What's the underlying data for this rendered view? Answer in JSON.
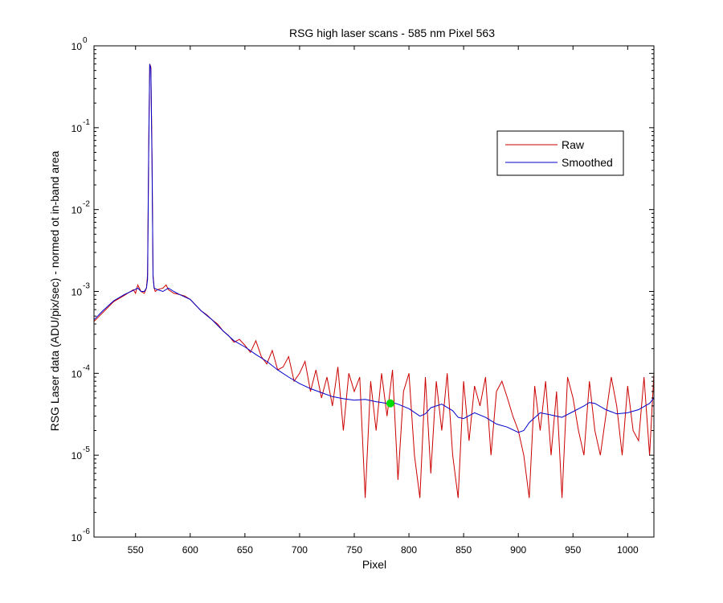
{
  "chart_data": {
    "type": "line",
    "title": "RSG high laser scans  - 585 nm    Pixel 563",
    "xlabel": "Pixel",
    "ylabel": "RSG Laser data (ADU/pix/sec) - normed ot in-band area",
    "xlim": [
      512,
      1024
    ],
    "ylim": [
      1e-06,
      1
    ],
    "yscale": "log",
    "grid": false,
    "legend_position": "top-right",
    "x_ticks": [
      "550",
      "600",
      "650",
      "700",
      "750",
      "800",
      "850",
      "900",
      "950",
      "1000"
    ],
    "y_ticks": [
      {
        "base": "10",
        "exp": "0"
      },
      {
        "base": "10",
        "exp": "-1"
      },
      {
        "base": "10",
        "exp": "-2"
      },
      {
        "base": "10",
        "exp": "-3"
      },
      {
        "base": "10",
        "exp": "-4"
      },
      {
        "base": "10",
        "exp": "-5"
      },
      {
        "base": "10",
        "exp": "-6"
      }
    ],
    "series": [
      {
        "name": "Raw",
        "color": "#cc0000",
        "x": [
          512,
          520,
          530,
          540,
          548,
          550,
          552,
          555,
          558,
          560,
          561,
          562,
          563,
          564,
          565,
          566,
          567,
          568,
          570,
          575,
          578,
          580,
          585,
          590,
          595,
          600,
          605,
          610,
          615,
          620,
          625,
          630,
          635,
          640,
          645,
          650,
          655,
          660,
          665,
          670,
          675,
          680,
          685,
          690,
          695,
          700,
          705,
          710,
          715,
          720,
          725,
          730,
          735,
          740,
          745,
          750,
          755,
          760,
          765,
          770,
          775,
          780,
          785,
          790,
          795,
          800,
          805,
          810,
          815,
          820,
          825,
          830,
          835,
          840,
          845,
          850,
          855,
          860,
          865,
          870,
          875,
          880,
          885,
          890,
          895,
          900,
          905,
          910,
          915,
          920,
          925,
          930,
          935,
          940,
          945,
          950,
          955,
          960,
          965,
          970,
          975,
          980,
          985,
          990,
          995,
          1000,
          1005,
          1010,
          1015,
          1020,
          1024
        ],
        "y": [
          0.00043,
          0.00055,
          0.00075,
          0.0009,
          0.00105,
          0.00095,
          0.0012,
          0.001,
          0.00095,
          0.0011,
          0.0016,
          0.06,
          0.6,
          0.55,
          0.05,
          0.0016,
          0.0011,
          0.001,
          0.00105,
          0.0011,
          0.0012,
          0.00105,
          0.00095,
          0.00092,
          0.00088,
          0.0008,
          0.00068,
          0.00058,
          0.00052,
          0.00045,
          0.0004,
          0.00033,
          0.00029,
          0.00024,
          0.00026,
          0.00022,
          0.00018,
          0.00025,
          0.00016,
          0.00013,
          0.00019,
          0.00011,
          0.00012,
          0.00016,
          8e-05,
          0.0001,
          0.00014,
          6e-05,
          0.00011,
          5e-05,
          9e-05,
          4e-05,
          0.00012,
          2e-05,
          0.0001,
          6e-05,
          9e-05,
          3e-06,
          8e-05,
          2e-05,
          0.0001,
          3e-05,
          0.00011,
          5e-06,
          6e-05,
          0.0001,
          1e-05,
          3e-06,
          9e-05,
          6e-06,
          8e-05,
          2e-05,
          0.0001,
          1e-05,
          3e-06,
          8e-05,
          1.5e-05,
          7e-05,
          4e-05,
          9e-05,
          1e-05,
          6e-05,
          8e-05,
          5e-05,
          3e-05,
          2e-05,
          1e-05,
          3e-06,
          7e-05,
          2e-05,
          8e-05,
          1e-05,
          6e-05,
          3e-06,
          9e-05,
          5e-05,
          2e-05,
          1e-05,
          8e-05,
          2e-05,
          1e-05,
          3e-05,
          9e-05,
          4e-05,
          1e-05,
          7e-05,
          2e-05,
          1.5e-05,
          9e-05,
          1e-05,
          0.0001
        ]
      },
      {
        "name": "Smoothed",
        "color": "#0000cc",
        "x": [
          512,
          520,
          530,
          540,
          548,
          552,
          555,
          558,
          560,
          561,
          562,
          563,
          564,
          565,
          566,
          567,
          570,
          575,
          580,
          585,
          590,
          600,
          610,
          620,
          630,
          640,
          650,
          660,
          670,
          680,
          690,
          700,
          710,
          720,
          730,
          740,
          750,
          760,
          770,
          780,
          785,
          790,
          800,
          810,
          815,
          820,
          830,
          840,
          845,
          850,
          860,
          870,
          880,
          890,
          900,
          905,
          910,
          920,
          930,
          940,
          950,
          960,
          965,
          970,
          980,
          990,
          1000,
          1010,
          1020,
          1024
        ],
        "y": [
          0.00045,
          0.00058,
          0.00077,
          0.00092,
          0.00103,
          0.0011,
          0.001,
          0.001,
          0.0011,
          0.0014,
          0.05,
          0.6,
          0.52,
          0.04,
          0.0015,
          0.0011,
          0.00105,
          0.001,
          0.0011,
          0.001,
          0.00092,
          0.0008,
          0.00058,
          0.00045,
          0.00033,
          0.00025,
          0.00021,
          0.00017,
          0.00014,
          0.00011,
          9e-05,
          7.5e-05,
          6.5e-05,
          5.8e-05,
          5.2e-05,
          4.9e-05,
          4.7e-05,
          4.8e-05,
          4.5e-05,
          4.3e-05,
          4.4e-05,
          4.2e-05,
          3.7e-05,
          3e-05,
          3.2e-05,
          3.8e-05,
          4.2e-05,
          3.5e-05,
          2.9e-05,
          2.8e-05,
          3.3e-05,
          2.9e-05,
          2.4e-05,
          2.2e-05,
          1.9e-05,
          2e-05,
          2.5e-05,
          3.3e-05,
          3.1e-05,
          2.9e-05,
          3.4e-05,
          4e-05,
          4.4e-05,
          4.3e-05,
          3.6e-05,
          3.2e-05,
          3.3e-05,
          3.6e-05,
          4.3e-05,
          5e-05
        ]
      }
    ],
    "marker": {
      "x": 783,
      "y": 4.3e-05,
      "color": "#00dd00"
    }
  }
}
